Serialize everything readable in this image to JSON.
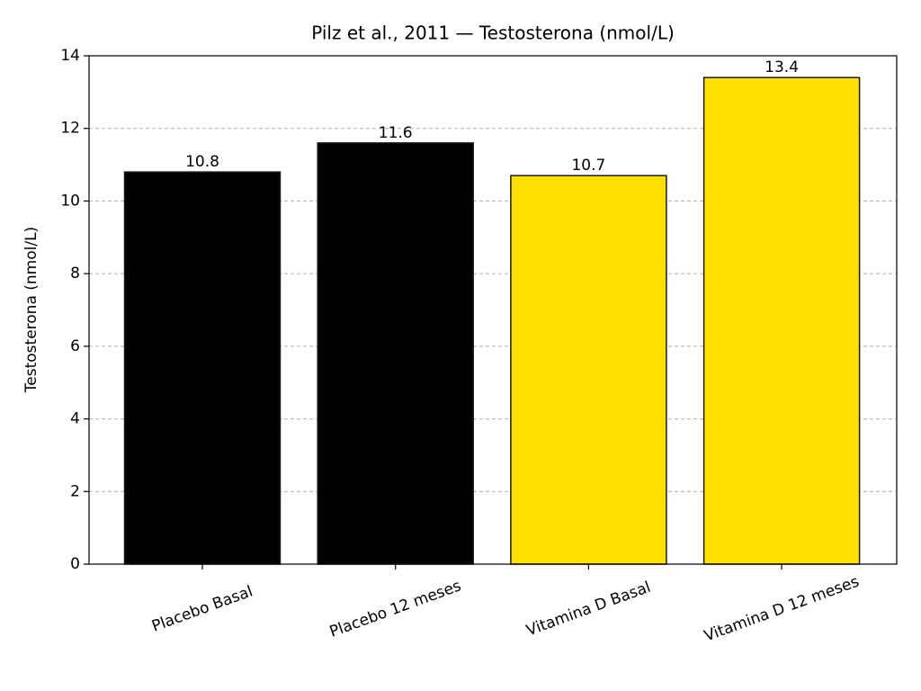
{
  "chart_data": {
    "type": "bar",
    "title": "Pilz et al., 2011 — Testosterona (nmol/L)",
    "ylabel": "Testosterona (nmol/L)",
    "categories": [
      "Placebo Basal",
      "Placebo 12 meses",
      "Vitamina D Basal",
      "Vitamina D 12 meses"
    ],
    "values": [
      10.8,
      11.6,
      10.7,
      13.4
    ],
    "colors": [
      "#000000",
      "#000000",
      "#ffe000",
      "#ffe000"
    ],
    "ylim": [
      0,
      14
    ],
    "yticks": [
      0,
      2,
      4,
      6,
      8,
      10,
      12,
      14
    ],
    "grid": true
  }
}
